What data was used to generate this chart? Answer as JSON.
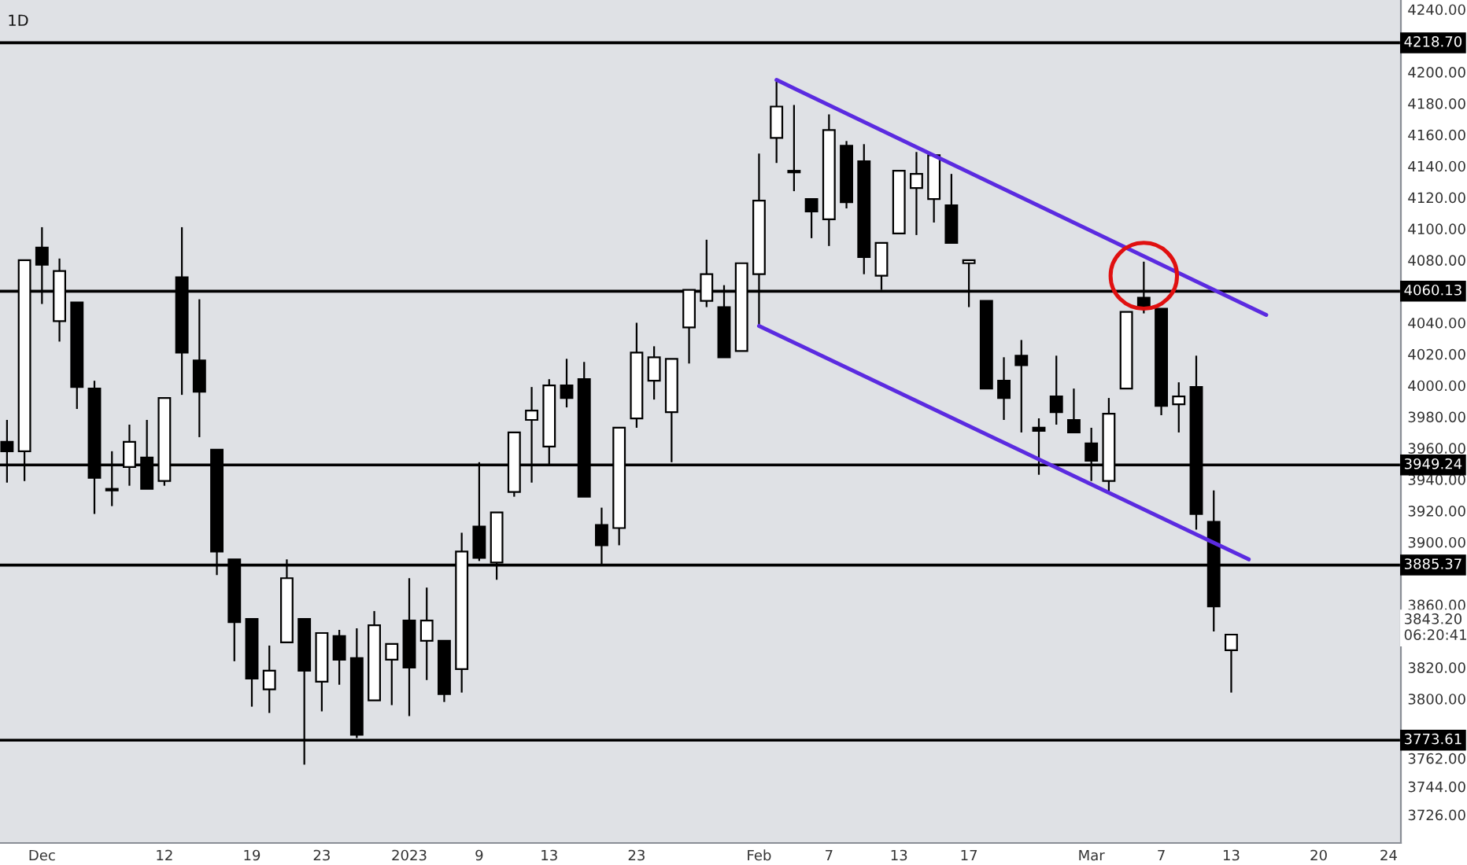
{
  "chart_data": {
    "type": "candlestick",
    "title": "1D",
    "categories": [
      null,
      null,
      "Dec",
      null,
      null,
      null,
      null,
      null,
      null,
      "12",
      null,
      null,
      null,
      null,
      "19",
      null,
      null,
      null,
      "23",
      null,
      null,
      null,
      null,
      "2023",
      null,
      null,
      null,
      "9",
      null,
      null,
      null,
      "13",
      null,
      null,
      null,
      null,
      "23",
      null,
      null,
      null,
      null,
      null,
      null,
      "Feb",
      null,
      null,
      null,
      "7",
      null,
      null,
      null,
      "13",
      null,
      null,
      null,
      "17",
      null,
      null,
      null,
      null,
      null,
      null,
      "Mar",
      null,
      null,
      null,
      "7",
      null,
      null,
      null,
      "13",
      null,
      null,
      null,
      null,
      "20",
      null,
      null,
      null,
      "24"
    ],
    "ohlc": [
      [
        3964,
        3978,
        3938,
        3958
      ],
      [
        3958,
        4080,
        3939,
        4080
      ],
      [
        4088,
        4101,
        4052,
        4077
      ],
      [
        4041,
        4081,
        4028,
        4073
      ],
      [
        4053,
        4053,
        3985,
        3999
      ],
      [
        3998,
        4003,
        3918,
        3941
      ],
      [
        3934,
        3958,
        3923,
        3933
      ],
      [
        3948,
        3975,
        3936,
        3964
      ],
      [
        3954,
        3978,
        3934,
        3934
      ],
      [
        3939,
        3992,
        3936,
        3992
      ],
      [
        4069,
        4101,
        3994,
        4021
      ],
      [
        4016,
        4055,
        3967,
        3996
      ],
      [
        3959,
        3959,
        3879,
        3894
      ],
      [
        3889,
        3889,
        3824,
        3849
      ],
      [
        3851,
        3851,
        3795,
        3813
      ],
      [
        3806,
        3834,
        3791,
        3818
      ],
      [
        3836,
        3889,
        3836,
        3877
      ],
      [
        3851,
        3851,
        3758,
        3818
      ],
      [
        3811,
        3842,
        3792,
        3842
      ],
      [
        3840,
        3844,
        3809,
        3825
      ],
      [
        3826,
        3845,
        3775,
        3777
      ],
      [
        3799,
        3856,
        3799,
        3847
      ],
      [
        3825,
        3835,
        3796,
        3835
      ],
      [
        3850,
        3877,
        3789,
        3820
      ],
      [
        3837,
        3871,
        3812,
        3850
      ],
      [
        3837,
        3837,
        3798,
        3803
      ],
      [
        3819,
        3906,
        3804,
        3894
      ],
      [
        3910,
        3951,
        3888,
        3890
      ],
      [
        3887,
        3919,
        3876,
        3919
      ],
      [
        3932,
        3970,
        3929,
        3970
      ],
      [
        3978,
        3999,
        3938,
        3984
      ],
      [
        3961,
        4004,
        3949,
        4000
      ],
      [
        4000,
        4017,
        3986,
        3992
      ],
      [
        4004,
        4015,
        3929,
        3929
      ],
      [
        3911,
        3922,
        3885,
        3898
      ],
      [
        3909,
        3973,
        3898,
        3973
      ],
      [
        3979,
        4040,
        3973,
        4021
      ],
      [
        4003,
        4025,
        3991,
        4018
      ],
      [
        3983,
        4017,
        3951,
        4017
      ],
      [
        4037,
        4061,
        4014,
        4061
      ],
      [
        4054,
        4093,
        4050,
        4071
      ],
      [
        4050,
        4064,
        4018,
        4018
      ],
      [
        4022,
        4078,
        4022,
        4078
      ],
      [
        4071,
        4148,
        4038,
        4118
      ],
      [
        4158,
        4194,
        4142,
        4178
      ],
      [
        4137,
        4179,
        4124,
        4136
      ],
      [
        4119,
        4119,
        4094,
        4111
      ],
      [
        4106,
        4173,
        4089,
        4163
      ],
      [
        4153,
        4156,
        4113,
        4117
      ],
      [
        4143,
        4154,
        4071,
        4082
      ],
      [
        4070,
        4091,
        4061,
        4091
      ],
      [
        4097,
        4137,
        4097,
        4137
      ],
      [
        4126,
        4149,
        4096,
        4135
      ],
      [
        4119,
        4147,
        4104,
        4147
      ],
      [
        4115,
        4135,
        4091,
        4091
      ],
      [
        4078,
        4080,
        4050,
        4080
      ],
      [
        4054,
        4054,
        3998,
        3998
      ],
      [
        4003,
        4018,
        3978,
        3992
      ],
      [
        4019,
        4029,
        3970,
        4013
      ],
      [
        3973,
        3979,
        3943,
        3971
      ],
      [
        3993,
        4019,
        3975,
        3983
      ],
      [
        3978,
        3998,
        3970,
        3970
      ],
      [
        3963,
        3973,
        3939,
        3952
      ],
      [
        3939,
        3992,
        3931,
        3982
      ],
      [
        3998,
        4047,
        3998,
        4047
      ],
      [
        4056,
        4079,
        4046,
        4049
      ],
      [
        4049,
        4049,
        3981,
        3987
      ],
      [
        3988,
        4002,
        3970,
        3993
      ],
      [
        3999,
        4019,
        3908,
        3918
      ],
      [
        3913,
        3933,
        3843,
        3859
      ],
      [
        3831,
        3841,
        3804,
        3841
      ],
      null,
      null,
      null,
      null,
      null,
      null,
      null,
      null,
      null
    ],
    "series": [
      {
        "type": "line",
        "color": "#5b2be0",
        "values": [
          null,
          null,
          null,
          null,
          null,
          null,
          null,
          null,
          null,
          null,
          null,
          null,
          null,
          null,
          null,
          null,
          null,
          null,
          null,
          null,
          null,
          null,
          null,
          null,
          null,
          null,
          null,
          null,
          null,
          null,
          null,
          null,
          null,
          null,
          null,
          null,
          null,
          null,
          null,
          null,
          null,
          null,
          null,
          null,
          4195,
          null,
          null,
          null,
          null,
          null,
          null,
          null,
          null,
          null,
          null,
          null,
          null,
          null,
          null,
          null,
          null,
          null,
          null,
          null,
          null,
          null,
          null,
          null,
          null,
          null,
          null,
          null,
          4045,
          null,
          null,
          null,
          null,
          null,
          null,
          null
        ]
      },
      {
        "type": "line",
        "color": "#5b2be0",
        "values": [
          null,
          null,
          null,
          null,
          null,
          null,
          null,
          null,
          null,
          null,
          null,
          null,
          null,
          null,
          null,
          null,
          null,
          null,
          null,
          null,
          null,
          null,
          null,
          null,
          null,
          null,
          null,
          null,
          null,
          null,
          null,
          null,
          null,
          null,
          null,
          null,
          null,
          null,
          null,
          null,
          null,
          null,
          null,
          4038,
          null,
          null,
          null,
          null,
          null,
          null,
          null,
          null,
          null,
          null,
          null,
          null,
          null,
          null,
          null,
          null,
          null,
          null,
          null,
          null,
          null,
          null,
          null,
          null,
          null,
          null,
          null,
          3889,
          null,
          null,
          null,
          null,
          null,
          null,
          null,
          null
        ]
      }
    ],
    "ref_lines": [
      {
        "axis": "y",
        "value": 4218.7,
        "label": "4218.70",
        "color": "#000000"
      },
      {
        "axis": "y",
        "value": 4060.13,
        "label": "4060.13",
        "color": "#000000"
      },
      {
        "axis": "y",
        "value": 3949.24,
        "label": "3949.24",
        "color": "#000000"
      },
      {
        "axis": "y",
        "value": 3885.37,
        "label": "3885.37",
        "color": "#000000"
      },
      {
        "axis": "y",
        "value": 3773.61,
        "label": "3773.61",
        "color": "#000000"
      }
    ],
    "annotations": [
      "3843.20\n06:20:41"
    ],
    "ylim": [
      3708,
      4246
    ],
    "yticks": [
      {
        "value": 4240,
        "label": "4240.00"
      },
      {
        "value": 4200,
        "label": "4200.00"
      },
      {
        "value": 4180,
        "label": "4180.00"
      },
      {
        "value": 4160,
        "label": "4160.00"
      },
      {
        "value": 4140,
        "label": "4140.00"
      },
      {
        "value": 4120,
        "label": "4120.00"
      },
      {
        "value": 4100,
        "label": "4100.00"
      },
      {
        "value": 4080,
        "label": "4080.00"
      },
      {
        "value": 4040,
        "label": "4040.00"
      },
      {
        "value": 4020,
        "label": "4020.00"
      },
      {
        "value": 4000,
        "label": "4000.00"
      },
      {
        "value": 3980,
        "label": "3980.00"
      },
      {
        "value": 3960,
        "label": "3960.00"
      },
      {
        "value": 3940,
        "label": "3940.00"
      },
      {
        "value": 3920,
        "label": "3920.00"
      },
      {
        "value": 3900,
        "label": "3900.00"
      },
      {
        "value": 3860,
        "label": "3860.00"
      },
      {
        "value": 3820,
        "label": "3820.00"
      },
      {
        "value": 3800,
        "label": "3800.00"
      },
      {
        "value": 3762,
        "label": "3762.00"
      },
      {
        "value": 3744,
        "label": "3744.00"
      },
      {
        "value": 3726,
        "label": "3726.00"
      }
    ],
    "grid": false,
    "legend": false
  }
}
